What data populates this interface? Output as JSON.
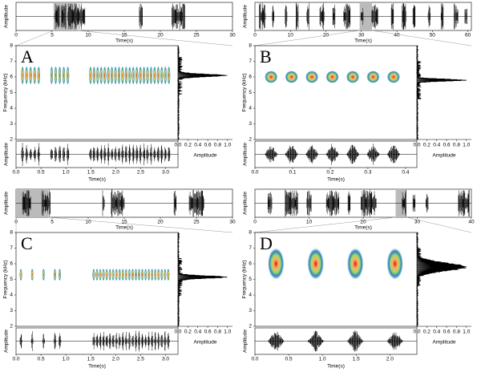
{
  "panels": [
    {
      "letter": "A",
      "overview": {
        "ylabel": "Amplitude",
        "xlabel": "Time(s)",
        "xlim": [
          0,
          30
        ],
        "xticks": [
          0,
          5,
          10,
          15,
          20,
          25,
          30
        ],
        "highlight": [
          5.2,
          8.5
        ]
      },
      "spectrogram": {
        "ylabel": "Frequency (kHz)",
        "ylim": [
          2,
          8
        ],
        "yticks": [
          2,
          3,
          4,
          5,
          6,
          7,
          8
        ]
      },
      "histogram": {
        "xlabel": "Amplitude",
        "xlim": [
          0,
          1.1
        ],
        "xticks": [
          {
            "value": 0,
            "label": "0.0"
          },
          0.2,
          0.4,
          0.6,
          0.8,
          {
            "value": 1,
            "label": "1.0"
          }
        ]
      },
      "waveform": {
        "ylabel": "Amplitude",
        "xlabel": "Time(s)",
        "xlim": [
          0,
          3.25
        ],
        "xticks": [
          {
            "value": 0,
            "label": "0.0"
          },
          0.5,
          {
            "value": 1,
            "label": "1.0"
          },
          1.5,
          {
            "value": 2,
            "label": "2.0"
          },
          2.5,
          {
            "value": 3,
            "label": "3.0"
          }
        ]
      }
    },
    {
      "letter": "B",
      "overview": {
        "ylabel": "Amplitude",
        "xlabel": "Time(s)",
        "xlim": [
          0,
          61
        ],
        "xticks": [
          0,
          10,
          20,
          30,
          40,
          50,
          60
        ],
        "highlight": [
          29.5,
          33
        ]
      },
      "spectrogram": {
        "ylabel": "Frequency (kHz)",
        "ylim": [
          2,
          8
        ],
        "yticks": [
          2,
          3,
          4,
          5,
          6,
          7,
          8
        ]
      },
      "histogram": {
        "xlabel": "Amplitude",
        "xlim": [
          0,
          1.1
        ],
        "xticks": [
          {
            "value": 0,
            "label": "0.0"
          },
          0.2,
          0.4,
          0.6,
          0.8,
          {
            "value": 1,
            "label": "1.0"
          }
        ]
      },
      "waveform": {
        "ylabel": "Amplitude",
        "xlabel": "Time(s)",
        "xlim": [
          0,
          0.43
        ],
        "xticks": [
          {
            "value": 0,
            "label": "0.0"
          },
          0.1,
          0.2,
          0.3,
          0.4
        ]
      }
    },
    {
      "letter": "C",
      "overview": {
        "ylabel": "Amplitude",
        "xlabel": "Time(s)",
        "xlim": [
          0,
          30
        ],
        "xticks": [
          0,
          5,
          10,
          15,
          20,
          25,
          30
        ],
        "highlight": [
          0,
          4.5
        ]
      },
      "spectrogram": {
        "ylabel": "Frequency (kHz)",
        "ylim": [
          2,
          8
        ],
        "yticks": [
          2,
          3,
          4,
          5,
          6,
          7,
          8
        ]
      },
      "histogram": {
        "xlabel": "Amplitude",
        "xlim": [
          0,
          1.1
        ],
        "xticks": [
          {
            "value": 0,
            "label": "0.0"
          },
          0.2,
          0.4,
          0.6,
          0.8,
          {
            "value": 1,
            "label": "1.0"
          }
        ]
      },
      "waveform": {
        "ylabel": "Amplitude",
        "xlabel": "Time(s)",
        "xlim": [
          0,
          3.25
        ],
        "xticks": [
          {
            "value": 0,
            "label": "0.0"
          },
          0.5,
          {
            "value": 1,
            "label": "1.0"
          },
          1.5,
          {
            "value": 2,
            "label": "2.0"
          },
          2.5,
          {
            "value": 3,
            "label": "3.0"
          }
        ]
      }
    },
    {
      "letter": "D",
      "overview": {
        "ylabel": "Amplitude",
        "xlabel": "Time(s)",
        "xlim": [
          0,
          40
        ],
        "xticks": [
          0,
          10,
          20,
          30,
          40
        ],
        "highlight": [
          26,
          28
        ]
      },
      "spectrogram": {
        "ylabel": "Frequency (kHz)",
        "ylim": [
          2,
          8
        ],
        "yticks": [
          2,
          3,
          4,
          5,
          6,
          7,
          8
        ]
      },
      "histogram": {
        "xlabel": "Amplitude",
        "xlim": [
          0,
          1.1
        ],
        "xticks": [
          {
            "value": 0,
            "label": "0.0"
          },
          0.2,
          0.4,
          0.6,
          0.8,
          {
            "value": 1,
            "label": "1.0"
          }
        ]
      },
      "waveform": {
        "ylabel": "Amplitude",
        "xlabel": "Time(s)",
        "xlim": [
          0,
          2.4
        ],
        "xticks": [
          {
            "value": 0,
            "label": "0.0"
          },
          0.5,
          {
            "value": 1,
            "label": "1.0"
          },
          1.5,
          {
            "value": 2,
            "label": "2.0"
          }
        ]
      }
    }
  ]
}
